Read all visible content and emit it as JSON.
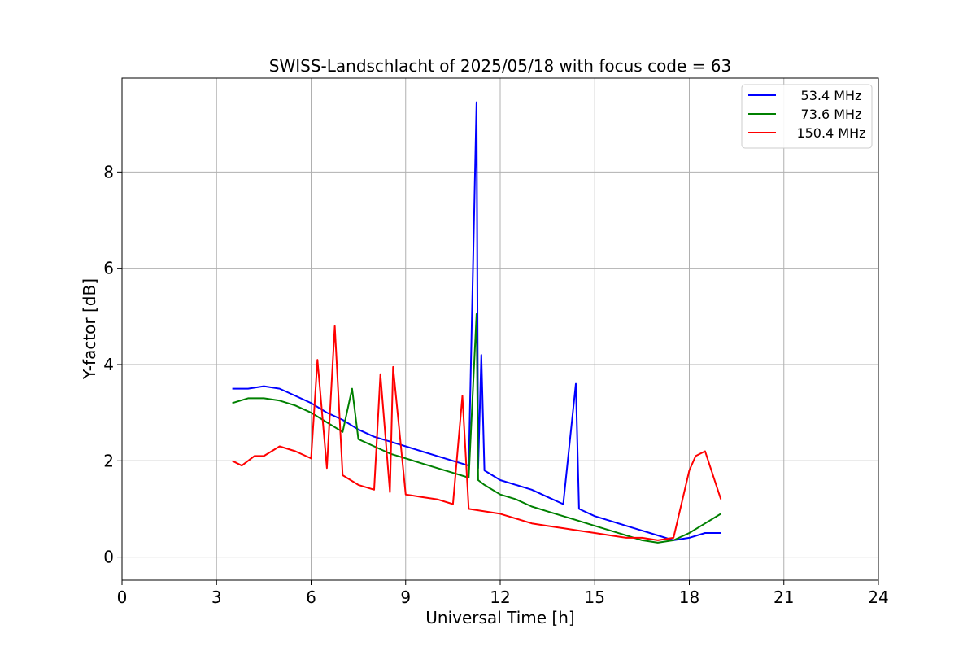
{
  "chart_data": {
    "type": "line",
    "title": "SWISS-Landschlacht of 2025/05/18 with focus code = 63",
    "xlabel": "Universal Time [h]",
    "ylabel": "Y-factor [dB]",
    "xlim": [
      0,
      24
    ],
    "ylim": [
      -0.48,
      9.95
    ],
    "xticks": [
      0,
      3,
      6,
      9,
      12,
      15,
      18,
      21,
      24
    ],
    "xtick_labels": [
      "0",
      "3",
      "6",
      "9",
      "12",
      "15",
      "18",
      "21",
      "24"
    ],
    "yticks": [
      0,
      2,
      4,
      6,
      8
    ],
    "ytick_labels": [
      "0",
      "2",
      "4",
      "6",
      "8"
    ],
    "grid": true,
    "legend_position": "top-right",
    "series": [
      {
        "name": "53.4 MHz",
        "color": "#0000ff",
        "x": [
          3.5,
          4.0,
          4.5,
          5.0,
          5.5,
          6.0,
          6.5,
          7.0,
          7.5,
          8.0,
          8.5,
          9.0,
          9.5,
          10.0,
          10.5,
          11.0,
          11.25,
          11.3,
          11.4,
          11.5,
          12.0,
          12.5,
          13.0,
          13.5,
          14.0,
          14.4,
          14.5,
          15.0,
          15.5,
          16.0,
          16.5,
          17.0,
          17.5,
          18.0,
          18.5,
          19.0
        ],
        "y": [
          3.5,
          3.5,
          3.55,
          3.5,
          3.35,
          3.2,
          3.0,
          2.85,
          2.65,
          2.5,
          2.4,
          2.3,
          2.2,
          2.1,
          2.0,
          1.9,
          9.45,
          1.85,
          4.2,
          1.8,
          1.6,
          1.5,
          1.4,
          1.25,
          1.1,
          3.6,
          1.0,
          0.85,
          0.75,
          0.65,
          0.55,
          0.45,
          0.35,
          0.4,
          0.5,
          0.5
        ]
      },
      {
        "name": "73.6 MHz",
        "color": "#008000",
        "x": [
          3.5,
          4.0,
          4.5,
          5.0,
          5.5,
          6.0,
          6.5,
          7.0,
          7.3,
          7.5,
          8.0,
          8.5,
          9.0,
          9.5,
          10.0,
          10.5,
          11.0,
          11.25,
          11.3,
          11.5,
          12.0,
          12.5,
          13.0,
          13.5,
          14.0,
          14.5,
          15.0,
          15.5,
          16.0,
          16.5,
          17.0,
          17.5,
          18.0,
          18.5,
          19.0
        ],
        "y": [
          3.2,
          3.3,
          3.3,
          3.25,
          3.15,
          3.0,
          2.8,
          2.6,
          3.5,
          2.45,
          2.3,
          2.15,
          2.05,
          1.95,
          1.85,
          1.75,
          1.65,
          5.05,
          1.6,
          1.5,
          1.3,
          1.2,
          1.05,
          0.95,
          0.85,
          0.75,
          0.65,
          0.55,
          0.45,
          0.35,
          0.3,
          0.35,
          0.5,
          0.7,
          0.9
        ]
      },
      {
        "name": "150.4 MHz",
        "color": "#ff0000",
        "x": [
          3.5,
          3.8,
          4.0,
          4.2,
          4.5,
          5.0,
          5.5,
          6.0,
          6.2,
          6.5,
          6.75,
          7.0,
          7.5,
          8.0,
          8.2,
          8.5,
          8.6,
          9.0,
          9.5,
          10.0,
          10.5,
          10.8,
          11.0,
          11.5,
          12.0,
          12.5,
          13.0,
          13.5,
          14.0,
          14.5,
          15.0,
          15.5,
          16.0,
          16.5,
          17.0,
          17.5,
          18.0,
          18.2,
          18.5,
          19.0
        ],
        "y": [
          2.0,
          1.9,
          2.0,
          2.1,
          2.1,
          2.3,
          2.2,
          2.05,
          4.1,
          1.85,
          4.8,
          1.7,
          1.5,
          1.4,
          3.8,
          1.35,
          3.95,
          1.3,
          1.25,
          1.2,
          1.1,
          3.35,
          1.0,
          0.95,
          0.9,
          0.8,
          0.7,
          0.65,
          0.6,
          0.55,
          0.5,
          0.45,
          0.4,
          0.4,
          0.35,
          0.4,
          1.8,
          2.1,
          2.2,
          1.2
        ]
      }
    ]
  }
}
